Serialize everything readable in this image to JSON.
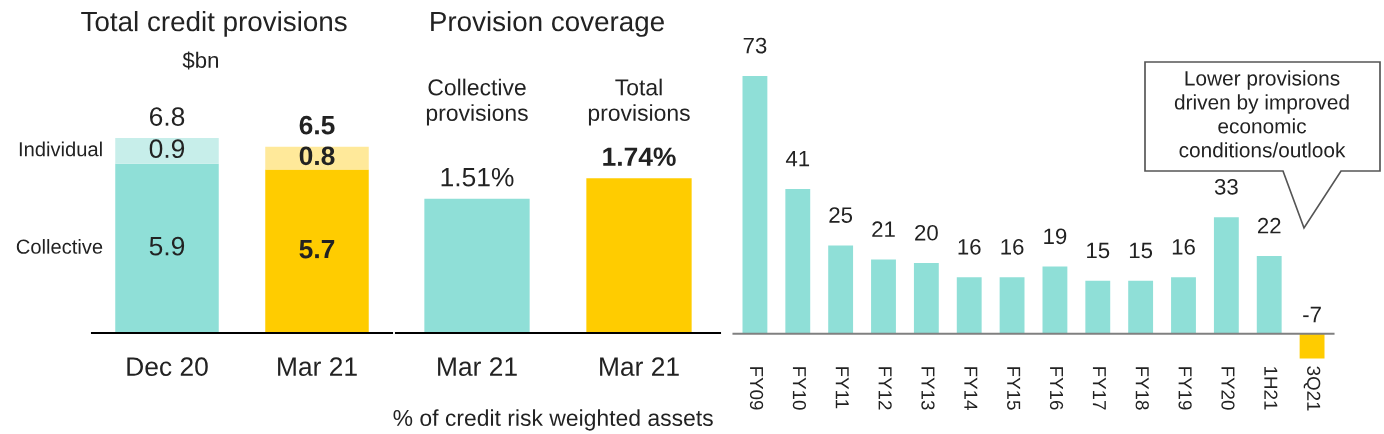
{
  "chart_data": [
    {
      "type": "bar",
      "title": "Total credit provisions",
      "subtitle": "$bn",
      "categories": [
        "Dec 20",
        "Mar 21"
      ],
      "stacked": true,
      "series": [
        {
          "name": "Collective",
          "colors": [
            "#8fdfd7",
            "#ffcc00"
          ],
          "values": [
            5.9,
            5.7
          ]
        },
        {
          "name": "Individual",
          "colors": [
            "#c7eeea",
            "#ffe99a"
          ],
          "values": [
            0.9,
            0.8
          ]
        }
      ],
      "data_labels": true,
      "totals": [
        "6.8",
        "6.5"
      ],
      "tick_labels": "x"
    },
    {
      "type": "bar",
      "title": "Provision coverage",
      "xlabel": "% of credit risk weighted assets",
      "categories": [
        "Mar 21",
        "Mar 21"
      ],
      "values": [
        1.51,
        1.74
      ],
      "colors": [
        "#8fdfd7",
        "#ffcc00"
      ],
      "value_labels": [
        "1.51%",
        "1.74%"
      ],
      "annotations": [
        "Collective\nprovisions",
        "Total\nprovisions"
      ],
      "tick_labels": "x"
    },
    {
      "type": "bar",
      "categories": [
        "FY09",
        "FY10",
        "FY11",
        "FY12",
        "FY13",
        "FY14",
        "FY15",
        "FY16",
        "FY17",
        "FY18",
        "FY19",
        "FY20",
        "1H21",
        "3Q21"
      ],
      "values": [
        73,
        41,
        25,
        21,
        20,
        16,
        16,
        19,
        15,
        15,
        16,
        33,
        22,
        -7
      ],
      "colors": [
        "#8fdfd7",
        "#8fdfd7",
        "#8fdfd7",
        "#8fdfd7",
        "#8fdfd7",
        "#8fdfd7",
        "#8fdfd7",
        "#8fdfd7",
        "#8fdfd7",
        "#8fdfd7",
        "#8fdfd7",
        "#8fdfd7",
        "#8fdfd7",
        "#ffcc00"
      ],
      "data_labels": true,
      "annotations": [
        "Lower provisions\ndriven by improved\neconomic\nconditions/outlook"
      ],
      "tick_labels": "x"
    }
  ]
}
